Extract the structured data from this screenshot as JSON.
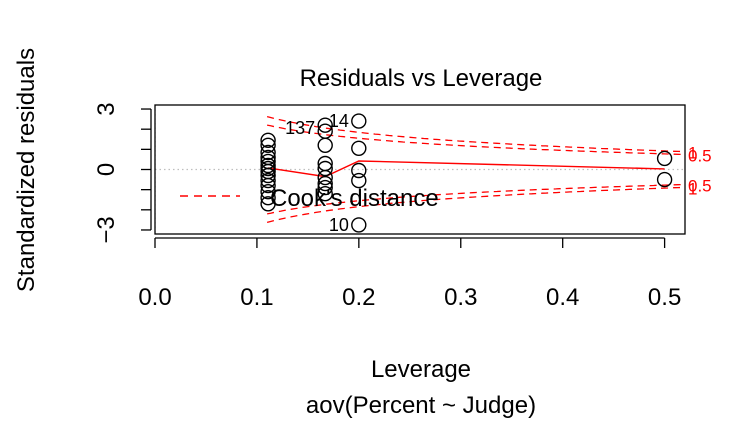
{
  "chart_data": {
    "type": "scatter",
    "title": "Residuals vs Leverage",
    "xlabel": "Leverage",
    "ylabel": "Standardized residuals",
    "subtitle": "aov(Percent ~ Judge)",
    "xlim": [
      0.0,
      0.52
    ],
    "ylim": [
      -3.2,
      3.2
    ],
    "x_ticks": [
      0.0,
      0.1,
      0.2,
      0.3,
      0.4,
      0.5
    ],
    "x_tick_labels": [
      "0.0",
      "0.1",
      "0.2",
      "0.3",
      "0.4",
      "0.5"
    ],
    "y_ticks": [
      -3,
      -2,
      -1,
      0,
      1,
      2,
      3
    ],
    "y_tick_labels": [
      {
        "value": -3,
        "label": "−3"
      },
      {
        "value": 0,
        "label": "0"
      },
      {
        "value": 3,
        "label": "3"
      }
    ],
    "grid": false,
    "legend": {
      "position": "left",
      "entries": [
        "Cook's distance"
      ]
    },
    "points": [
      {
        "x": 0.111,
        "y": 1.45
      },
      {
        "x": 0.111,
        "y": 1.2
      },
      {
        "x": 0.111,
        "y": 0.85
      },
      {
        "x": 0.111,
        "y": 0.6
      },
      {
        "x": 0.111,
        "y": 0.4
      },
      {
        "x": 0.111,
        "y": 0.2
      },
      {
        "x": 0.111,
        "y": 0.05
      },
      {
        "x": 0.111,
        "y": -0.1
      },
      {
        "x": 0.111,
        "y": -0.3
      },
      {
        "x": 0.111,
        "y": -0.55
      },
      {
        "x": 0.111,
        "y": -0.8
      },
      {
        "x": 0.111,
        "y": -1.1
      },
      {
        "x": 0.111,
        "y": -1.4
      },
      {
        "x": 0.111,
        "y": -1.7
      },
      {
        "x": 0.167,
        "y": 2.2
      },
      {
        "x": 0.167,
        "y": 1.9
      },
      {
        "x": 0.167,
        "y": 1.2
      },
      {
        "x": 0.167,
        "y": 0.3
      },
      {
        "x": 0.167,
        "y": 0.05
      },
      {
        "x": 0.167,
        "y": -0.4
      },
      {
        "x": 0.167,
        "y": -0.7
      },
      {
        "x": 0.167,
        "y": -0.9
      },
      {
        "x": 0.167,
        "y": -1.2
      },
      {
        "x": 0.2,
        "y": 2.4
      },
      {
        "x": 0.2,
        "y": 1.05
      },
      {
        "x": 0.2,
        "y": -0.05
      },
      {
        "x": 0.2,
        "y": -0.55
      },
      {
        "x": 0.2,
        "y": -2.75
      },
      {
        "x": 0.5,
        "y": 0.55
      },
      {
        "x": 0.5,
        "y": -0.5
      }
    ],
    "point_labels": [
      {
        "text": "14",
        "x": 0.2,
        "y": 2.4
      },
      {
        "text": "137",
        "x": 0.167,
        "y": 2.05
      },
      {
        "text": "10",
        "x": 0.2,
        "y": -2.75
      }
    ],
    "smoother": [
      {
        "x": 0.111,
        "y": 0.08
      },
      {
        "x": 0.167,
        "y": -0.35
      },
      {
        "x": 0.2,
        "y": 0.42
      },
      {
        "x": 0.5,
        "y": 0.03
      }
    ],
    "cook_contours": [
      {
        "level": "0.5",
        "k": 0.6
      },
      {
        "level": "1",
        "k": 0.85
      }
    ],
    "colors": {
      "points": "#000000",
      "smoother": "#ff0000",
      "cook": "#ff0000",
      "zero_line": "#bebebe"
    }
  }
}
